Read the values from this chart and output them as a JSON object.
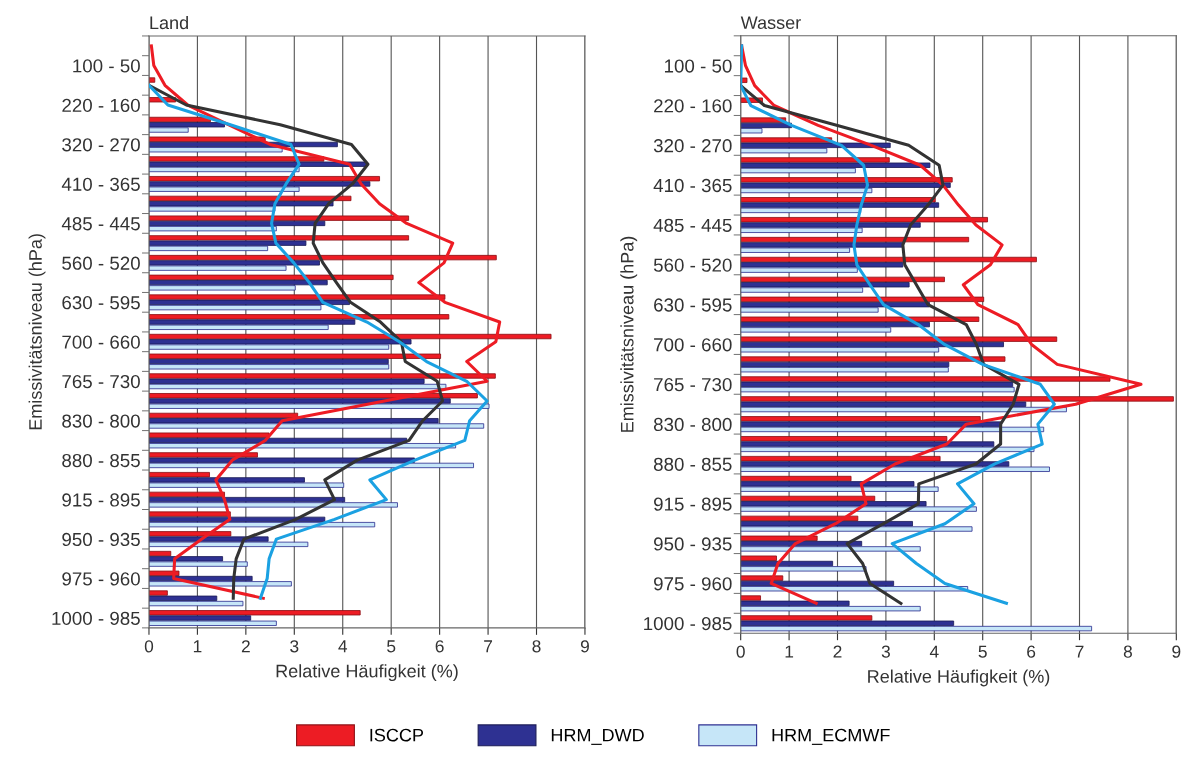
{
  "chart_data": [
    {
      "type": "bar",
      "orientation": "horizontal",
      "title": "Land",
      "xlabel": "Relative Häufigkeit (%)",
      "ylabel": "Emissivitätsniveau (hPa)",
      "categories": [
        null,
        "100 - 50",
        null,
        "220 - 160",
        null,
        "320 - 270",
        null,
        "410 - 365",
        null,
        "485 - 445",
        null,
        "560 - 520",
        null,
        "630 - 595",
        null,
        "700 - 660",
        null,
        "765 - 730",
        null,
        "830 - 800",
        null,
        "880 - 855",
        null,
        "915 - 895",
        null,
        "950 - 935",
        null,
        "975 - 960",
        null,
        "1000 - 985"
      ],
      "xlim": [
        0,
        9
      ],
      "xticks": [
        0,
        1,
        2,
        3,
        4,
        5,
        6,
        7,
        8,
        9
      ],
      "grid": "x",
      "legend": "bottom",
      "series": [
        {
          "name": "ISCCP",
          "color": "#ed1c24",
          "values": [
            null,
            null,
            0.12,
            0.55,
            1.27,
            2.4,
            3.61,
            4.76,
            4.17,
            5.36,
            5.36,
            7.17,
            5.04,
            6.11,
            6.19,
            8.3,
            6.02,
            7.15,
            6.78,
            3.07,
            2.48,
            2.24,
            1.25,
            1.56,
            1.68,
            1.69,
            0.45,
            0.62,
            0.38,
            4.36
          ]
        },
        {
          "name": "HRM_DWD",
          "color": "#2e3192",
          "values": [
            null,
            null,
            null,
            null,
            1.56,
            3.89,
            4.5,
            4.56,
            3.8,
            3.63,
            3.24,
            3.52,
            3.68,
            4.14,
            4.25,
            5.41,
            4.94,
            5.68,
            6.22,
            5.97,
            5.32,
            5.48,
            3.21,
            4.04,
            3.63,
            2.46,
            1.52,
            2.13,
            1.4,
            2.1
          ]
        },
        {
          "name": "HRM_ECMWF",
          "color": "#c6e6f8",
          "values": [
            null,
            null,
            null,
            null,
            0.81,
            2.75,
            3.1,
            3.1,
            2.6,
            2.63,
            2.45,
            2.83,
            3.02,
            3.55,
            3.7,
            4.95,
            4.95,
            6.13,
            7.02,
            6.91,
            6.33,
            6.7,
            4.02,
            5.13,
            4.66,
            3.28,
            2.03,
            2.94,
            1.94,
            2.63
          ]
        },
        {
          "type": "line",
          "color": "#ed1c24",
          "values": [
            0.05,
            0.1,
            0.33,
            0.8,
            1.65,
            2.5,
            4.14,
            4.38,
            4.76,
            5.32,
            6.27,
            6.09,
            5.57,
            6.11,
            7.24,
            7.16,
            6.56,
            6.98,
            4.86,
            2.75,
            2.4,
            1.72,
            1.38,
            1.56,
            1.67,
            1.09,
            0.53,
            0.51,
            2.36,
            null
          ]
        },
        {
          "type": "line",
          "color": "#333333",
          "values": [
            null,
            null,
            0,
            0.77,
            2.71,
            4.18,
            4.52,
            4.2,
            3.71,
            3.43,
            3.39,
            3.59,
            3.87,
            4.16,
            4.78,
            5.21,
            5.29,
            5.95,
            6.06,
            5.65,
            5.37,
            4.3,
            3.63,
            3.83,
            3.03,
            1.96,
            1.8,
            1.75,
            1.74,
            null
          ]
        },
        {
          "type": "line",
          "color": "#1ba1e2",
          "values": [
            null,
            null,
            0,
            0.39,
            1.68,
            2.93,
            3.1,
            2.83,
            2.6,
            2.53,
            2.62,
            2.99,
            3.31,
            3.59,
            4.5,
            5.17,
            5.73,
            6.56,
            6.98,
            6.62,
            6.52,
            5.49,
            4.56,
            4.9,
            3.83,
            2.63,
            2.48,
            2.44,
            2.3,
            null
          ]
        }
      ]
    },
    {
      "type": "bar",
      "orientation": "horizontal",
      "title": "Wasser",
      "xlabel": "Relative Häufigkeit (%)",
      "ylabel": "Emissivitätsniveau (hPa)",
      "categories": [
        null,
        "100 - 50",
        null,
        "220 - 160",
        null,
        "320 - 270",
        null,
        "410 - 365",
        null,
        "485 - 445",
        null,
        "560 - 520",
        null,
        "630 - 595",
        null,
        "700 - 660",
        null,
        "765 - 730",
        null,
        "830 - 800",
        null,
        "880 - 855",
        null,
        "915 - 895",
        null,
        "950 - 935",
        null,
        "975 - 960",
        null,
        "1000 - 985"
      ],
      "xlim": [
        0,
        9
      ],
      "xticks": [
        0,
        1,
        2,
        3,
        4,
        5,
        6,
        7,
        8,
        9
      ],
      "grid": "x",
      "series": [
        {
          "color": "#ed1c24",
          "values": [
            null,
            null,
            0.13,
            0.45,
            0.93,
            1.88,
            3.07,
            4.37,
            4.02,
            5.1,
            4.71,
            6.11,
            4.21,
            5.02,
            4.92,
            6.53,
            5.46,
            7.63,
            8.94,
            4.95,
            4.26,
            4.12,
            2.28,
            2.77,
            2.42,
            1.58,
            0.74,
            0.87,
            0.41,
            2.71
          ]
        },
        {
          "color": "#2e3192",
          "values": [
            null,
            null,
            null,
            null,
            1.05,
            3.09,
            3.91,
            4.33,
            4.09,
            3.71,
            3.35,
            3.35,
            3.48,
            3.9,
            3.9,
            5.43,
            4.3,
            5.62,
            5.89,
            5.39,
            5.23,
            5.54,
            3.58,
            3.83,
            3.55,
            2.5,
            1.9,
            3.16,
            2.24,
            4.4
          ]
        },
        {
          "color": "#c6e6f8",
          "values": [
            null,
            null,
            null,
            null,
            0.44,
            1.78,
            2.37,
            2.71,
            2.48,
            2.51,
            2.25,
            2.41,
            2.52,
            2.84,
            3.1,
            4.09,
            4.29,
            5.65,
            6.73,
            6.26,
            6.06,
            6.38,
            4.08,
            4.87,
            4.78,
            3.71,
            2.59,
            4.69,
            3.71,
            7.25
          ]
        },
        {
          "type": "line",
          "color": "#ed1c24",
          "values": [
            0.02,
            0.1,
            0.29,
            0.69,
            1.6,
            2.7,
            3.71,
            4.18,
            4.5,
            4.86,
            5.4,
            5.16,
            4.6,
            4.9,
            5.73,
            6.01,
            6.54,
            8.27,
            6.92,
            4.66,
            4.26,
            3.19,
            2.49,
            2.59,
            1.96,
            1.13,
            0.77,
            0.63,
            1.56,
            null
          ]
        },
        {
          "type": "line",
          "color": "#333333",
          "values": [
            null,
            null,
            0,
            0.49,
            2.0,
            3.47,
            4.1,
            4.18,
            3.87,
            3.51,
            3.35,
            3.39,
            3.63,
            3.87,
            4.66,
            4.87,
            5.02,
            5.75,
            5.63,
            5.37,
            5.37,
            4.86,
            3.68,
            3.67,
            2.95,
            2.2,
            2.52,
            2.67,
            3.31,
            null
          ]
        },
        {
          "type": "line",
          "color": "#1ba1e2",
          "values": [
            0.02,
            0.01,
            0,
            0.21,
            1.05,
            2.08,
            2.54,
            2.62,
            2.49,
            2.4,
            2.34,
            2.4,
            2.67,
            2.95,
            3.67,
            4.21,
            5.0,
            6.19,
            6.48,
            6.14,
            6.23,
            5.25,
            4.48,
            4.82,
            4.22,
            3.13,
            3.63,
            4.22,
            5.49,
            null
          ]
        }
      ]
    }
  ]
}
